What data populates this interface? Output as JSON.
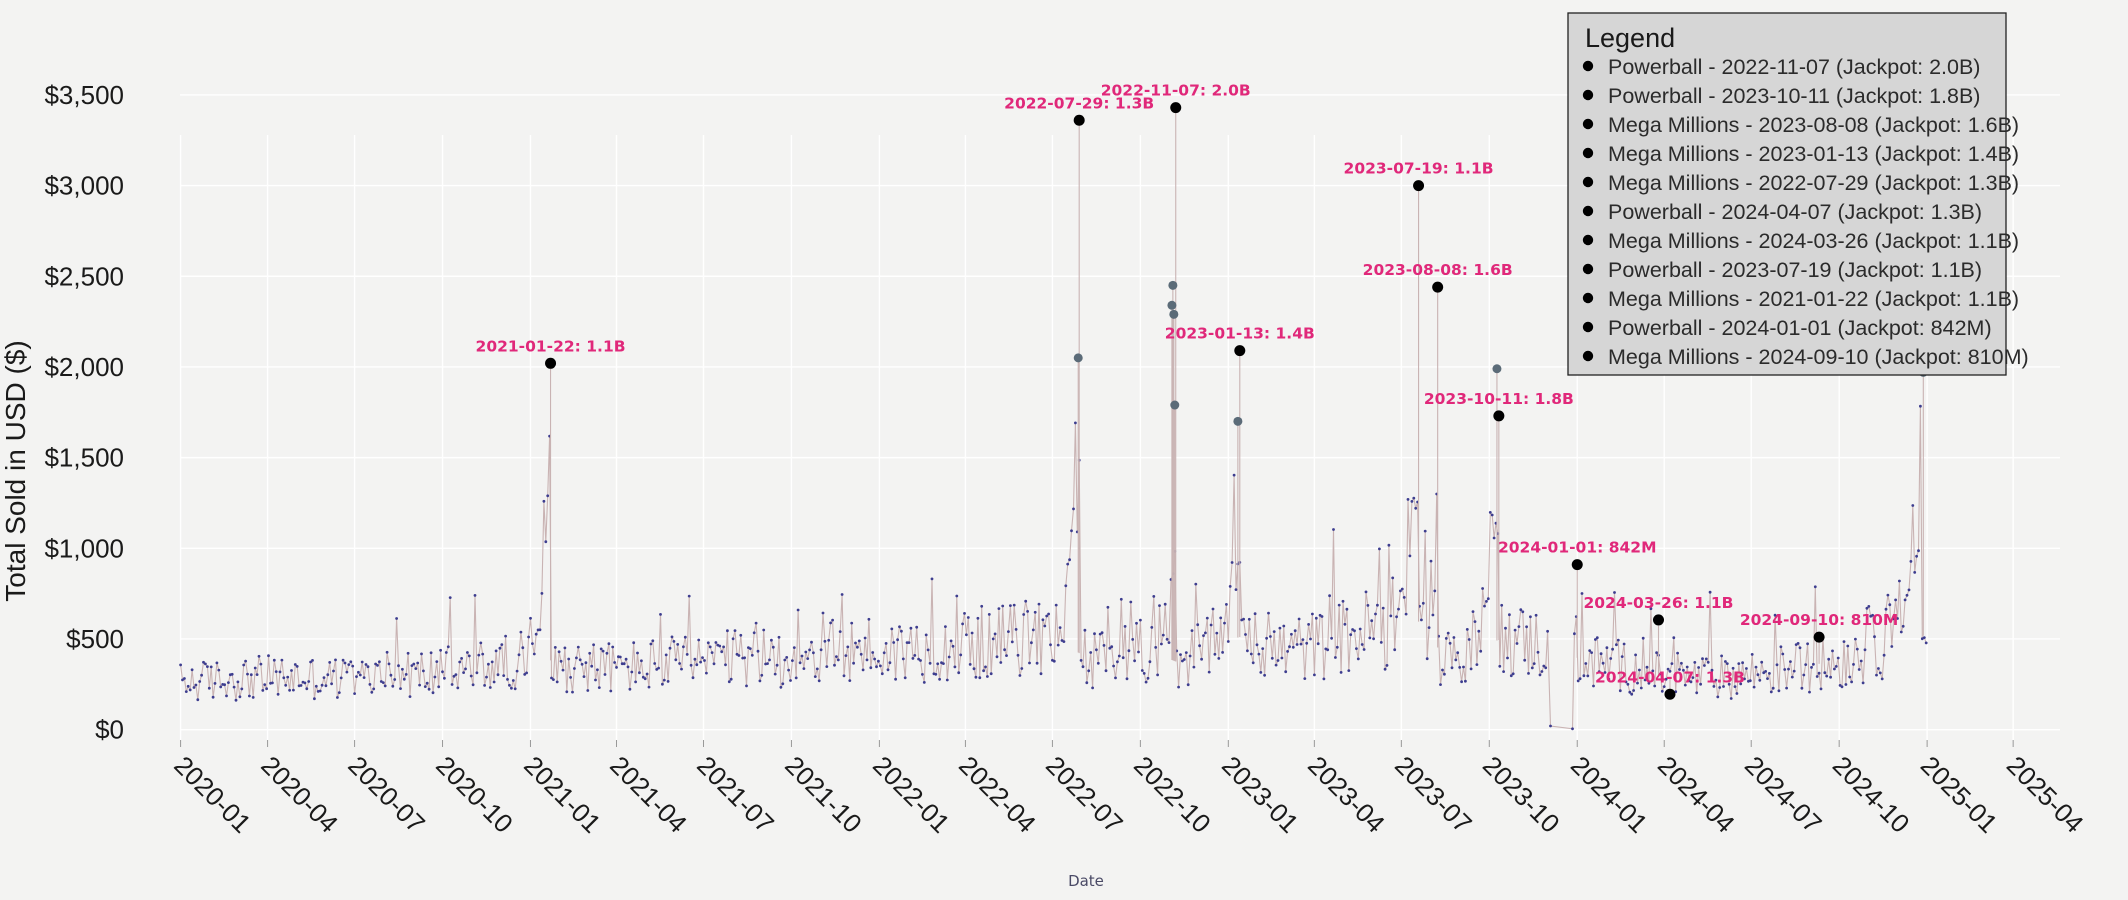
{
  "chart_data": {
    "type": "line",
    "title": "",
    "xlabel": "Date",
    "ylabel": "Total Sold in USD ($)",
    "ylim": [
      -250,
      3720
    ],
    "yticks": [
      0,
      500,
      1000,
      1500,
      2000,
      2500,
      3000,
      3500
    ],
    "ytick_labels": [
      "$0",
      "$500",
      "$1,000",
      "$1,500",
      "$2,000",
      "$2,500",
      "$3,000",
      "$3,500"
    ],
    "xlim": [
      "2019-11-30",
      "2025-05-20"
    ],
    "xticks": [
      "2020-01",
      "2020-04",
      "2020-07",
      "2020-10",
      "2021-01",
      "2021-04",
      "2021-07",
      "2021-10",
      "2022-01",
      "2022-04",
      "2022-07",
      "2022-10",
      "2023-01",
      "2023-04",
      "2023-07",
      "2023-10",
      "2024-01",
      "2024-04",
      "2024-07",
      "2024-10",
      "2025-01",
      "2025-04"
    ],
    "grid": true,
    "colors": {
      "line": "#c9b3b3",
      "small_point": "#3d3d8f",
      "outlier_point": "#5b6b78",
      "jackpot_point": "#000000",
      "annotation": "#e0287a"
    },
    "baseline": [
      [
        "2020-01-01",
        260
      ],
      [
        "2020-04-01",
        290
      ],
      [
        "2020-07-01",
        280
      ],
      [
        "2020-10-01",
        320
      ],
      [
        "2020-12-01",
        360
      ],
      [
        "2021-01-05",
        420
      ],
      [
        "2021-02-01",
        360
      ],
      [
        "2021-04-01",
        340
      ],
      [
        "2021-07-01",
        380
      ],
      [
        "2021-10-01",
        400
      ],
      [
        "2021-12-20",
        450
      ],
      [
        "2022-01-01",
        420
      ],
      [
        "2022-04-01",
        470
      ],
      [
        "2022-07-01",
        520
      ],
      [
        "2022-08-10",
        380
      ],
      [
        "2022-10-01",
        450
      ],
      [
        "2022-11-10",
        370
      ],
      [
        "2022-12-20",
        480
      ],
      [
        "2023-01-20",
        520
      ],
      [
        "2023-02-15",
        430
      ],
      [
        "2023-04-01",
        460
      ],
      [
        "2023-06-01",
        560
      ],
      [
        "2023-07-25",
        600
      ],
      [
        "2023-08-15",
        380
      ],
      [
        "2023-09-10",
        450
      ],
      [
        "2023-10-15",
        500
      ],
      [
        "2023-11-15",
        480
      ],
      [
        "2024-01-10",
        380
      ],
      [
        "2024-02-15",
        350
      ],
      [
        "2024-04-10",
        280
      ],
      [
        "2024-06-01",
        290
      ],
      [
        "2024-08-01",
        330
      ],
      [
        "2024-10-01",
        380
      ],
      [
        "2024-12-01",
        500
      ],
      [
        "2024-12-31",
        520
      ]
    ],
    "amplitude": 0.42,
    "gap": [
      "2023-12-02",
      "2023-12-28"
    ],
    "gap_points": [
      [
        "2023-12-04",
        20
      ],
      [
        "2023-12-27",
        5
      ]
    ],
    "surges": [
      {
        "start": "2020-12-20",
        "peak": "2021-01-22",
        "end": "2021-01-25",
        "peak_value": 1650,
        "rise": 1.5
      },
      {
        "start": "2022-06-20",
        "peak": "2022-07-29",
        "end": "2022-08-01",
        "peak_value": 1250,
        "rise": 1.6
      },
      {
        "start": "2022-10-05",
        "peak": "2022-11-06",
        "end": "2022-11-09",
        "peak_value": 1000,
        "rise": 1.7
      },
      {
        "start": "2022-12-15",
        "peak": "2023-01-13",
        "end": "2023-01-15",
        "peak_value": 1100,
        "rise": 1.5
      },
      {
        "start": "2023-06-10",
        "peak": "2023-07-19",
        "end": "2023-07-21",
        "peak_value": 1600,
        "rise": 1.6
      },
      {
        "start": "2023-07-22",
        "peak": "2023-08-08",
        "end": "2023-08-10",
        "peak_value": 1250,
        "rise": 1.5
      },
      {
        "start": "2023-09-01",
        "peak": "2023-10-11",
        "end": "2023-10-13",
        "peak_value": 1500,
        "rise": 1.5
      },
      {
        "start": "2024-11-10",
        "peak": "2024-12-26",
        "end": "2024-12-31",
        "peak_value": 1300,
        "rise": 1.4
      }
    ],
    "outliers": [
      {
        "x": "2022-07-28",
        "y": 2050
      },
      {
        "x": "2022-11-03",
        "y": 2340
      },
      {
        "x": "2022-11-04",
        "y": 2450
      },
      {
        "x": "2022-11-05",
        "y": 2290
      },
      {
        "x": "2022-11-06",
        "y": 1790
      },
      {
        "x": "2023-01-11",
        "y": 1700
      },
      {
        "x": "2023-10-09",
        "y": 1990
      },
      {
        "x": "2024-12-28",
        "y": 1970
      }
    ],
    "jackpots": [
      {
        "x": "2021-01-22",
        "y": 2020,
        "label": "2021-01-22: 1.1B"
      },
      {
        "x": "2022-07-29",
        "y": 3360,
        "label": "2022-07-29: 1.3B"
      },
      {
        "x": "2022-11-07",
        "y": 3430,
        "label": "2022-11-07: 2.0B"
      },
      {
        "x": "2023-01-13",
        "y": 2090,
        "label": "2023-01-13: 1.4B"
      },
      {
        "x": "2023-07-19",
        "y": 3000,
        "label": "2023-07-19: 1.1B"
      },
      {
        "x": "2023-08-08",
        "y": 2440,
        "label": "2023-08-08: 1.6B"
      },
      {
        "x": "2023-10-11",
        "y": 1730,
        "label": "2023-10-11: 1.8B"
      },
      {
        "x": "2024-01-01",
        "y": 910,
        "label": "2024-01-01: 842M"
      },
      {
        "x": "2024-03-26",
        "y": 605,
        "label": "2024-03-26: 1.1B"
      },
      {
        "x": "2024-04-07",
        "y": 195,
        "label": "2024-04-07: 1.3B"
      },
      {
        "x": "2024-09-10",
        "y": 510,
        "label": "2024-09-10: 810M"
      }
    ],
    "legend": {
      "title": "Legend",
      "placement": "top-right",
      "items": [
        "Powerball - 2022-11-07 (Jackpot: 2.0B)",
        "Powerball - 2023-10-11 (Jackpot: 1.8B)",
        "Mega Millions - 2023-08-08 (Jackpot: 1.6B)",
        "Mega Millions - 2023-01-13 (Jackpot: 1.4B)",
        "Mega Millions - 2022-07-29 (Jackpot: 1.3B)",
        "Powerball - 2024-04-07 (Jackpot: 1.3B)",
        "Mega Millions - 2024-03-26 (Jackpot: 1.1B)",
        "Powerball - 2023-07-19 (Jackpot: 1.1B)",
        "Mega Millions - 2021-01-22 (Jackpot: 1.1B)",
        "Powerball - 2024-01-01 (Jackpot: 842M)",
        "Mega Millions - 2024-09-10 (Jackpot: 810M)"
      ]
    }
  }
}
